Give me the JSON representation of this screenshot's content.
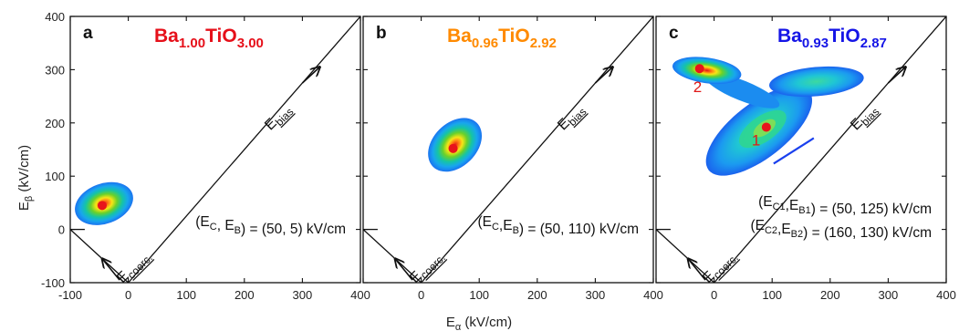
{
  "colors": {
    "red": "#e6101a",
    "orange": "#ff8a00",
    "blue": "#1515e6",
    "frame": "#111111"
  },
  "axes": {
    "xlabel": "E",
    "xlabel_sub": "α",
    "xlabel_unit": " (kV/cm)",
    "ylabel": "E",
    "ylabel_sub": "β",
    "ylabel_unit": " (kV/cm)"
  },
  "chart_data": [
    {
      "type": "heatmap",
      "panel": "a",
      "title_parts": [
        {
          "t": "Ba",
          "sub": false
        },
        {
          "t": "1.00",
          "sub": true
        },
        {
          "t": "TiO",
          "sub": false
        },
        {
          "t": "3.00",
          "sub": true
        }
      ],
      "title_color": "#e6101a",
      "xlim": [
        -100,
        400
      ],
      "ylim": [
        -100,
        400
      ],
      "x_ticks": [
        "-100",
        "0",
        "100",
        "200",
        "300",
        "400"
      ],
      "y_ticks": [
        "-100",
        "0",
        "100",
        "200",
        "300",
        "400"
      ],
      "peaks": [
        {
          "x": -45,
          "y": 45,
          "label": ""
        }
      ],
      "annotation": "(E<sub>C</sub>, E<sub>B</sub>) = (50, 5) kV/cm",
      "annotation_lines": [
        "(E<sub>C</sub>, E<sub>B</sub>) = (50, 5) kV/cm"
      ],
      "ebias_label": "E",
      "ebias_sub": "bias",
      "ecoerc_label": "E",
      "ecoerc_sub": "coerc."
    },
    {
      "type": "heatmap",
      "panel": "b",
      "title_parts": [
        {
          "t": "Ba",
          "sub": false
        },
        {
          "t": "0.96",
          "sub": true
        },
        {
          "t": "TiO",
          "sub": false
        },
        {
          "t": "2.92",
          "sub": true
        }
      ],
      "title_color": "#ff8a00",
      "xlim": [
        -100,
        400
      ],
      "ylim": [
        -100,
        400
      ],
      "x_ticks": [
        "",
        "0",
        "100",
        "200",
        "300",
        "400"
      ],
      "y_ticks": [],
      "peaks": [
        {
          "x": 55,
          "y": 152,
          "label": ""
        }
      ],
      "annotation_lines": [
        "(E<sub>C</sub>,E<sub>B</sub>) = (50, 110) kV/cm"
      ],
      "ebias_label": "E",
      "ebias_sub": "bias",
      "ecoerc_label": "E",
      "ecoerc_sub": "coerc."
    },
    {
      "type": "heatmap",
      "panel": "c",
      "title_parts": [
        {
          "t": "Ba",
          "sub": false
        },
        {
          "t": "0.93",
          "sub": true
        },
        {
          "t": "TiO",
          "sub": false
        },
        {
          "t": "2.87",
          "sub": true
        }
      ],
      "title_color": "#1515e6",
      "xlim": [
        -100,
        400
      ],
      "ylim": [
        -100,
        400
      ],
      "x_ticks": [
        "",
        "0",
        "100",
        "200",
        "300",
        "400"
      ],
      "y_ticks": [],
      "peaks": [
        {
          "x": 90,
          "y": 192,
          "label": "1"
        },
        {
          "x": -25,
          "y": 302,
          "label": "2"
        }
      ],
      "annotation_lines": [
        "(E<sub>C1</sub>,E<sub>B1</sub>) = (50, 125) kV/cm",
        "(E<sub>C2</sub>,E<sub>B2</sub>) = (160, 130) kV/cm"
      ],
      "ebias_label": "E",
      "ebias_sub": "bias",
      "ecoerc_label": "E",
      "ecoerc_sub": "coerc."
    }
  ]
}
